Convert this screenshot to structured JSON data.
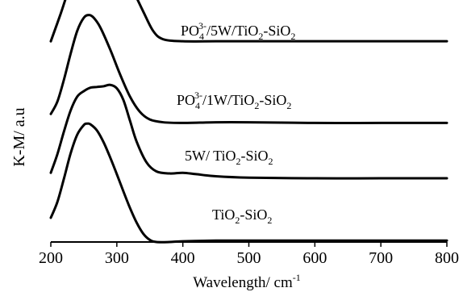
{
  "chart_data": {
    "type": "line",
    "title": "",
    "xlabel": "Wavelength/ cm",
    "xlabel_superscript": "-1",
    "ylabel": "K-M/ a.u",
    "xlim": [
      200,
      800
    ],
    "x_ticks": [
      200,
      300,
      400,
      500,
      600,
      700,
      800
    ],
    "y_ticks": [],
    "grid": false,
    "legend": "none",
    "line_color": "#000000",
    "series": [
      {
        "name": "PO43-/5W/TiO2-SiO2",
        "label_parts": [
          [
            "PO",
            ""
          ],
          [
            "4",
            "sub"
          ],
          [
            "3-",
            "sup"
          ],
          [
            "/5W/TiO",
            ""
          ],
          [
            "2",
            "sub"
          ],
          [
            "-SiO",
            ""
          ],
          [
            "2",
            "sub"
          ]
        ],
        "x": [
          200,
          215,
          230,
          245,
          260,
          270,
          280,
          295,
          310,
          325,
          340,
          355,
          370,
          400,
          450,
          500,
          600,
          700,
          800
        ],
        "values": [
          0.4,
          0.8,
          1.22,
          1.5,
          1.63,
          1.64,
          1.61,
          1.5,
          1.33,
          1.12,
          0.83,
          0.55,
          0.43,
          0.4,
          0.4,
          0.4,
          0.4,
          0.4,
          0.4
        ],
        "offset": 2.5
      },
      {
        "name": "PO43-/1W/TiO2-SiO2",
        "label_parts": [
          [
            "PO",
            ""
          ],
          [
            "4",
            "sub"
          ],
          [
            "3-",
            "sup"
          ],
          [
            "/1W/TiO",
            ""
          ],
          [
            "2",
            "sub"
          ],
          [
            "-SiO",
            ""
          ],
          [
            "2",
            "sub"
          ]
        ],
        "x": [
          200,
          210,
          220,
          230,
          240,
          250,
          258,
          265,
          275,
          290,
          305,
          320,
          335,
          350,
          370,
          400,
          450,
          500,
          600,
          700,
          800
        ],
        "values": [
          0.25,
          0.43,
          0.75,
          1.12,
          1.45,
          1.64,
          1.68,
          1.64,
          1.5,
          1.18,
          0.82,
          0.5,
          0.28,
          0.17,
          0.13,
          0.12,
          0.13,
          0.13,
          0.12,
          0.12,
          0.12
        ],
        "offset": 1.6
      },
      {
        "name": "5W/ TiO2-SiO2",
        "label_parts": [
          [
            "5W/ TiO",
            ""
          ],
          [
            "2",
            "sub"
          ],
          [
            "-SiO",
            ""
          ],
          [
            "2",
            "sub"
          ]
        ],
        "x": [
          200,
          210,
          220,
          230,
          240,
          250,
          260,
          270,
          280,
          290,
          300,
          310,
          320,
          330,
          345,
          360,
          380,
          400,
          420,
          450,
          500,
          600,
          700,
          800
        ],
        "values": [
          0.2,
          0.47,
          0.8,
          1.1,
          1.3,
          1.38,
          1.43,
          1.44,
          1.45,
          1.47,
          1.42,
          1.25,
          0.95,
          0.65,
          0.35,
          0.22,
          0.19,
          0.2,
          0.18,
          0.15,
          0.13,
          0.12,
          0.12,
          0.12
        ],
        "offset": 0.8
      },
      {
        "name": "TiO2-SiO2",
        "label_parts": [
          [
            "TiO",
            ""
          ],
          [
            "2",
            "sub"
          ],
          [
            "-SiO",
            ""
          ],
          [
            "2",
            "sub"
          ]
        ],
        "x": [
          200,
          210,
          220,
          230,
          240,
          250,
          255,
          260,
          270,
          280,
          290,
          300,
          310,
          320,
          330,
          340,
          350,
          360,
          380,
          400,
          450,
          500,
          600,
          700,
          800
        ],
        "values": [
          0.35,
          0.58,
          0.92,
          1.28,
          1.55,
          1.69,
          1.71,
          1.7,
          1.61,
          1.44,
          1.22,
          0.98,
          0.73,
          0.49,
          0.28,
          0.12,
          0.03,
          0.0,
          0.0,
          0.01,
          0.02,
          0.02,
          0.02,
          0.02,
          0.02
        ],
        "offset": 0.0
      }
    ]
  }
}
